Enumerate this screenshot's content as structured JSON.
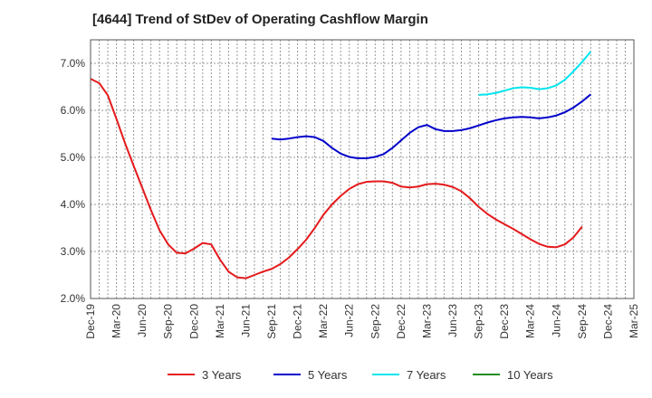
{
  "chart_data": {
    "type": "line",
    "title": "[4644]  Trend of StDev of Operating Cashflow Margin",
    "xlabel": "",
    "ylabel": "",
    "ylim": [
      2.0,
      7.5
    ],
    "yticks": [
      2.0,
      3.0,
      4.0,
      5.0,
      6.0,
      7.0
    ],
    "ytick_labels": [
      "2.0%",
      "3.0%",
      "4.0%",
      "5.0%",
      "6.0%",
      "7.0%"
    ],
    "x_tick_labels": [
      "Dec-19",
      "Mar-20",
      "Jun-20",
      "Sep-20",
      "Dec-20",
      "Mar-21",
      "Jun-21",
      "Sep-21",
      "Dec-21",
      "Mar-22",
      "Jun-22",
      "Sep-22",
      "Dec-22",
      "Mar-23",
      "Jun-23",
      "Sep-23",
      "Dec-23",
      "Mar-24",
      "Jun-24",
      "Sep-24",
      "Dec-24",
      "Mar-25"
    ],
    "x_start": "Dec-19",
    "grid": true,
    "legend_position": "bottom",
    "series": [
      {
        "name": "3 Years",
        "color": "#e41a1c",
        "start": "Dec-19",
        "values": [
          6.67,
          6.58,
          6.32,
          5.82,
          5.3,
          4.82,
          4.35,
          3.88,
          3.45,
          3.15,
          2.97,
          2.96,
          3.06,
          3.18,
          3.15,
          2.83,
          2.57,
          2.45,
          2.43,
          2.5,
          2.57,
          2.63,
          2.73,
          2.87,
          3.05,
          3.25,
          3.5,
          3.78,
          4.0,
          4.18,
          4.33,
          4.43,
          4.48,
          4.49,
          4.49,
          4.46,
          4.38,
          4.36,
          4.38,
          4.43,
          4.44,
          4.42,
          4.37,
          4.28,
          4.13,
          3.95,
          3.8,
          3.68,
          3.58,
          3.48,
          3.37,
          3.26,
          3.16,
          3.1,
          3.09,
          3.15,
          3.3,
          3.53
        ]
      },
      {
        "name": "5 Years",
        "color": "#0000cc",
        "start": "Sep-21",
        "values": [
          5.4,
          5.38,
          5.4,
          5.43,
          5.45,
          5.43,
          5.35,
          5.2,
          5.08,
          5.01,
          4.98,
          4.98,
          5.01,
          5.07,
          5.2,
          5.36,
          5.52,
          5.64,
          5.69,
          5.6,
          5.56,
          5.56,
          5.58,
          5.62,
          5.68,
          5.74,
          5.79,
          5.83,
          5.85,
          5.86,
          5.85,
          5.83,
          5.85,
          5.89,
          5.96,
          6.06,
          6.19,
          6.34
        ]
      },
      {
        "name": "7 Years",
        "color": "#00e5ee",
        "start": "Sep-23",
        "values": [
          6.33,
          6.34,
          6.37,
          6.42,
          6.47,
          6.49,
          6.48,
          6.45,
          6.47,
          6.53,
          6.65,
          6.83,
          7.03,
          7.25
        ]
      },
      {
        "name": "10 Years",
        "color": "#228b22",
        "start": "",
        "values": []
      }
    ]
  }
}
